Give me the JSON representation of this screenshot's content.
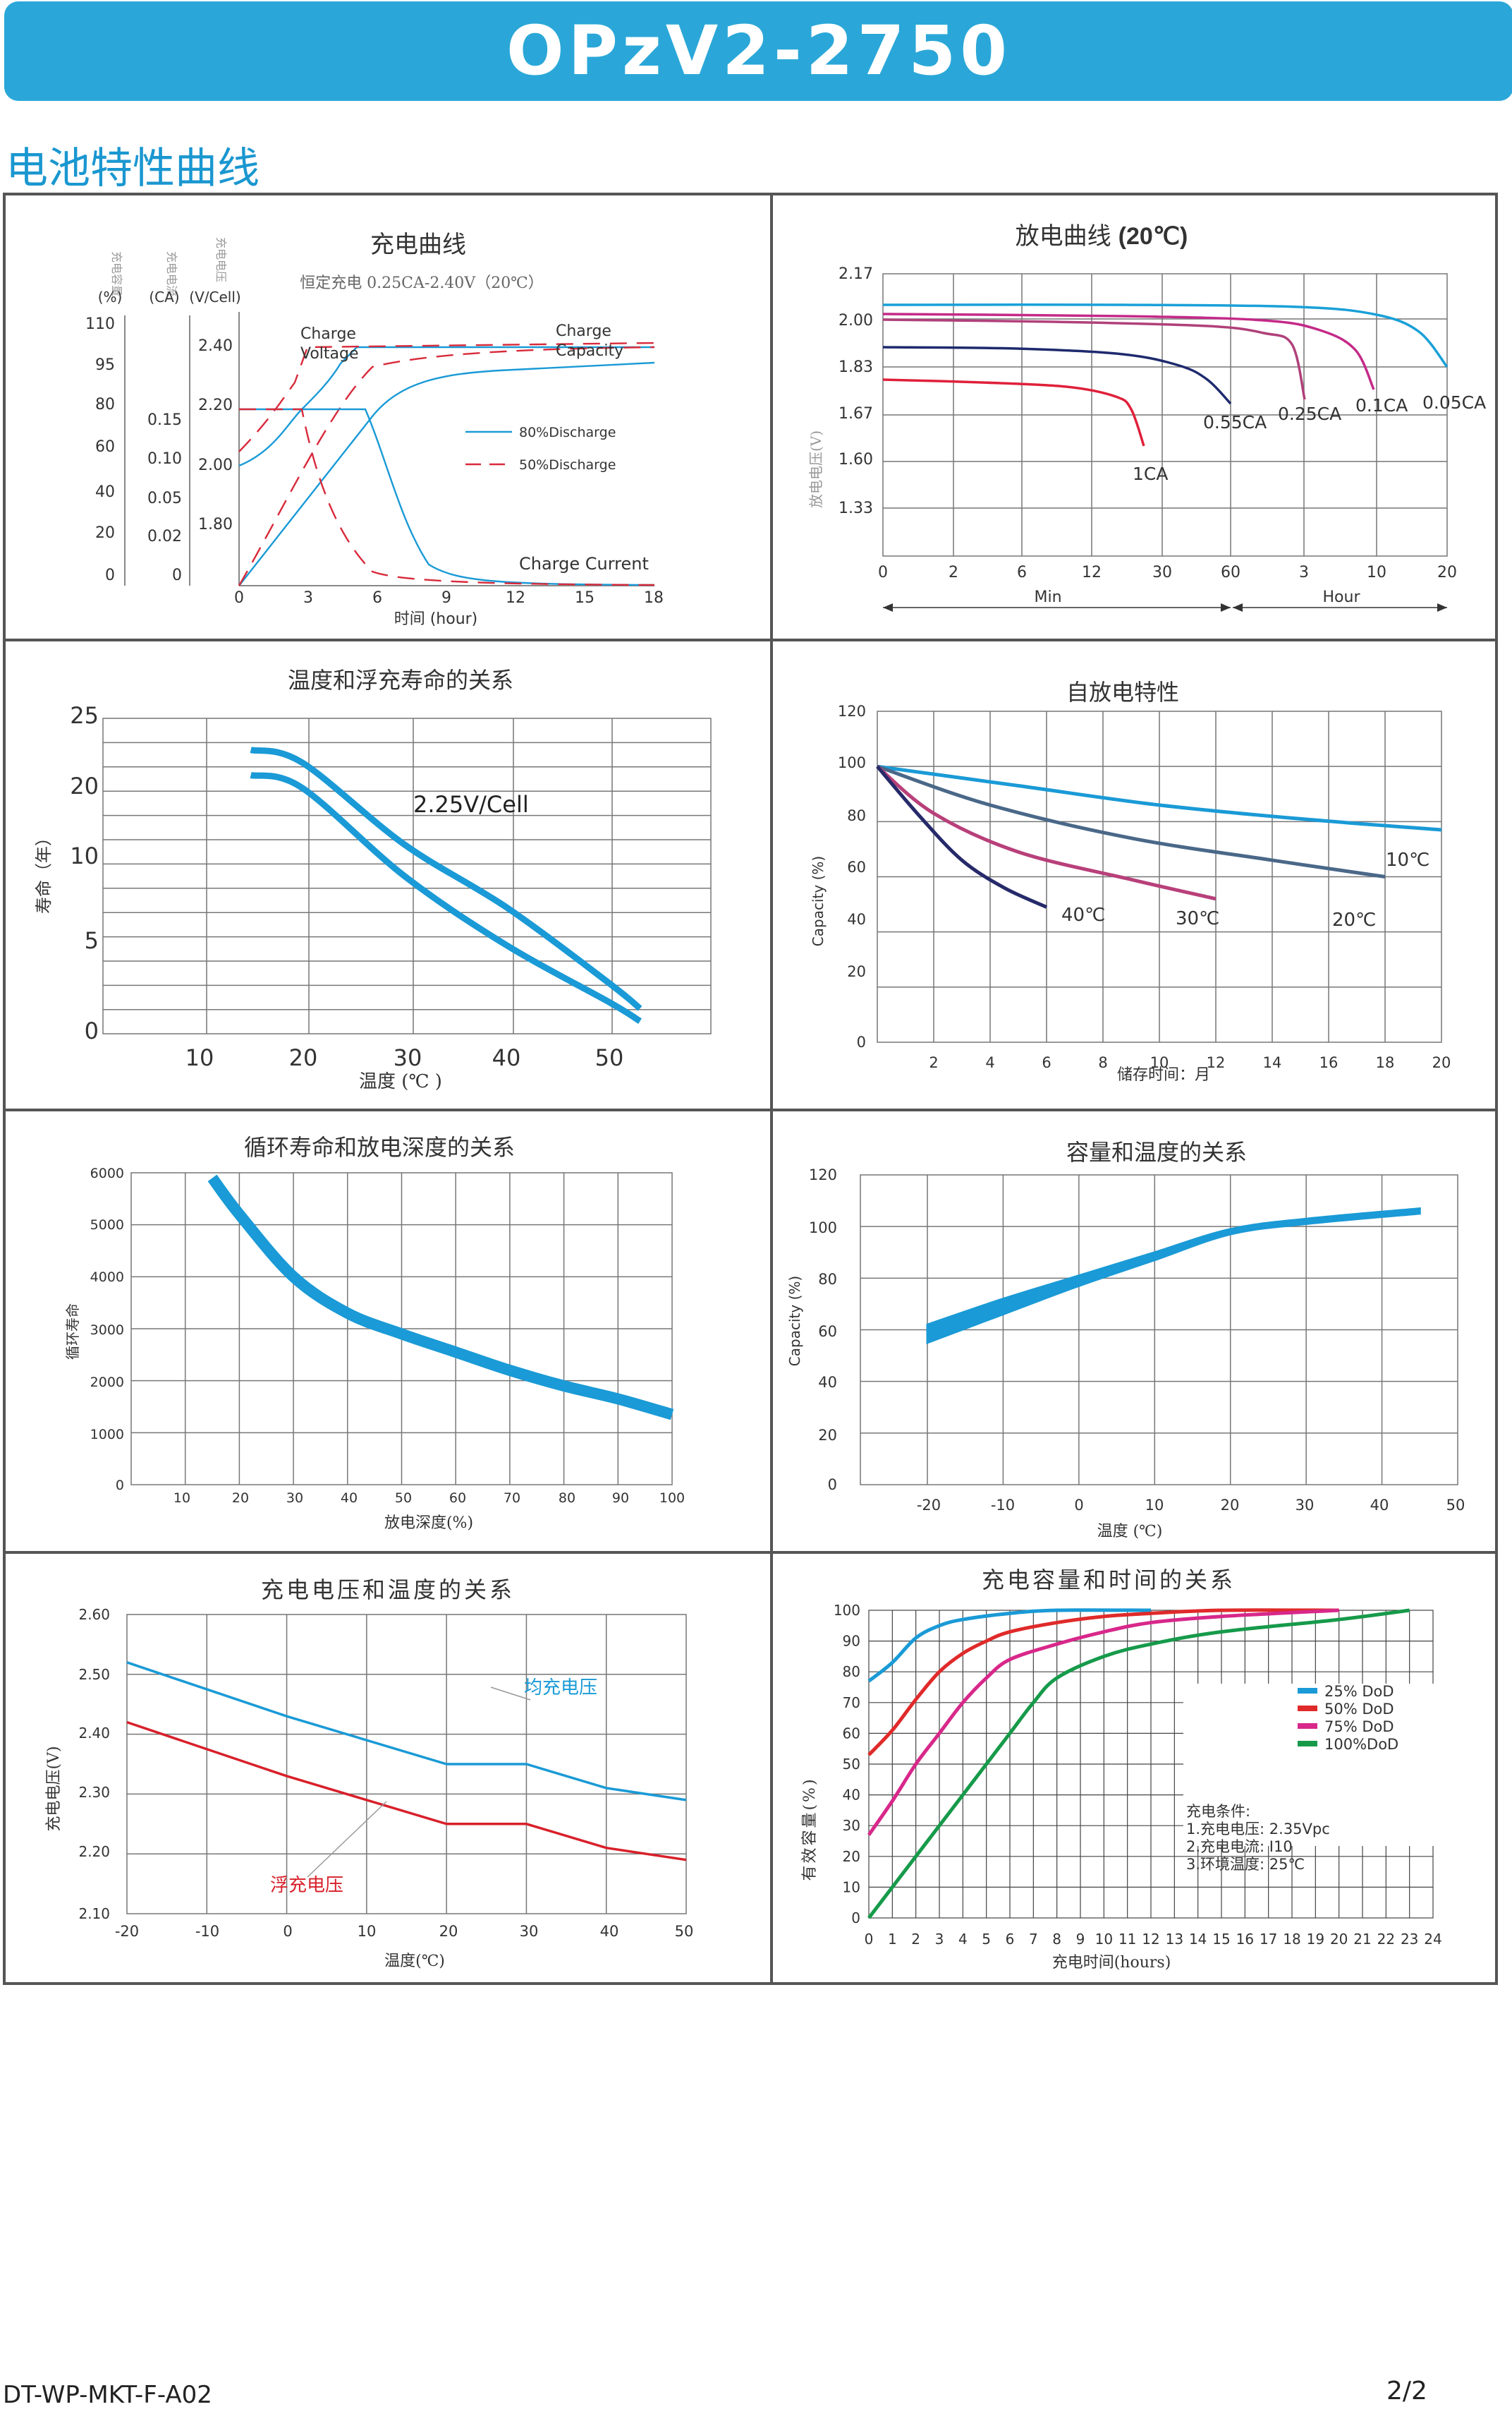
{
  "header": {
    "title": "OPzV2-2750",
    "color": "#2aa7d8"
  },
  "section_title": "电池特性曲线",
  "footer": {
    "code": "DT-WP-MKT-F-A02",
    "page": "2/2"
  },
  "charts": {
    "charge": {
      "title": "充电曲线",
      "subtitle": "恒定充电 0.25CA-2.40V（20℃）",
      "axis_names": {
        "capacity": "充电容量",
        "current": "充电电流",
        "voltage": "充电电压"
      },
      "units": {
        "capacity": "(%)",
        "current": "(CA)",
        "voltage": "(V/Cell)"
      },
      "capacity_ticks": [
        "110",
        "95",
        "80",
        "60",
        "40",
        "20",
        "0"
      ],
      "current_ticks": [
        "0.15",
        "0.10",
        "0.05",
        "0.02",
        "0"
      ],
      "voltage_ticks": [
        "2.40",
        "2.20",
        "2.00",
        "1.80"
      ],
      "x_ticks": [
        "0",
        "3",
        "6",
        "9",
        "12",
        "15",
        "18"
      ],
      "xlabel": "时间 (hour)",
      "labels": {
        "charge_voltage": "Charge\nVoltage",
        "charge_capacity": "Charge\nCapacity",
        "charge_current": "Charge Current"
      },
      "legend": [
        "80%Discharge",
        "50%Discharge"
      ]
    },
    "discharge": {
      "title": "放电曲线",
      "title_bold": "(20℃)",
      "ylabel": "放电电压(V)",
      "y_ticks": [
        "2.17",
        "2.00",
        "1.83",
        "1.67",
        "1.60",
        "1.33"
      ],
      "x_ticks": [
        "0",
        "2",
        "6",
        "12",
        "30",
        "60",
        "3",
        "10",
        "20"
      ],
      "x_group_min": "Min",
      "x_group_hour": "Hour",
      "curve_labels": [
        "1CA",
        "0.55CA",
        "0.25CA",
        "0.1CA",
        "0.05CA"
      ],
      "colors": [
        "#e0203a",
        "#1e2a6e",
        "#b0407a",
        "#c42a88",
        "#1aa0d8"
      ]
    },
    "float_life": {
      "title": "温度和浮充寿命的关系",
      "ylabel": "寿命（年）",
      "y_ticks": [
        "25",
        "20",
        "10",
        "5",
        "0"
      ],
      "x_ticks": [
        "10",
        "20",
        "30",
        "40",
        "50"
      ],
      "xlabel": "温度 (℃ )",
      "band_label": "2.25V/Cell",
      "chart_data": {
        "type": "area",
        "x": [
          15,
          20,
          30,
          40,
          50,
          53
        ],
        "upper": [
          22.5,
          21.5,
          15.0,
          10.0,
          4.0,
          2.0
        ],
        "lower": [
          20.5,
          19.5,
          12.5,
          7.0,
          2.5,
          1.0
        ]
      }
    },
    "self_discharge": {
      "title": "自放电特性",
      "ylabel": "Capacity (%)",
      "xlabel": "储存时间：月",
      "y_ticks": [
        "120",
        "100",
        "80",
        "60",
        "40",
        "20",
        "0"
      ],
      "x_ticks": [
        "2",
        "4",
        "6",
        "8",
        "10",
        "12",
        "14",
        "16",
        "18",
        "20"
      ],
      "chart_data": {
        "type": "line",
        "series": [
          {
            "name": "10℃",
            "x": [
              0,
              20
            ],
            "y": [
              100,
              77
            ]
          },
          {
            "name": "20℃",
            "x": [
              0,
              18
            ],
            "y": [
              100,
              60
            ]
          },
          {
            "name": "30℃",
            "x": [
              0,
              12
            ],
            "y": [
              100,
              52
            ]
          },
          {
            "name": "40℃",
            "x": [
              0,
              6
            ],
            "y": [
              100,
              49
            ]
          }
        ]
      }
    },
    "cycle_life": {
      "title": "循环寿命和放电深度的关系",
      "ylabel": "循环寿命",
      "xlabel": "放电深度(%)",
      "y_ticks": [
        "6000",
        "5000",
        "4000",
        "3000",
        "2000",
        "1000",
        "0"
      ],
      "x_ticks": [
        "10",
        "20",
        "30",
        "40",
        "50",
        "60",
        "70",
        "80",
        "90",
        "100"
      ],
      "chart_data": {
        "type": "line",
        "x": [
          15,
          20,
          30,
          40,
          50,
          60,
          70,
          80,
          90,
          100
        ],
        "y": [
          5900,
          5200,
          4000,
          3300,
          2900,
          2550,
          2200,
          1900,
          1650,
          1350
        ]
      }
    },
    "capacity_temp": {
      "title": "容量和温度的关系",
      "ylabel": "Capacity (%)",
      "xlabel": "温度 (℃)",
      "y_ticks": [
        "120",
        "100",
        "80",
        "60",
        "40",
        "20",
        "0"
      ],
      "x_ticks": [
        "-20",
        "-10",
        "0",
        "10",
        "20",
        "30",
        "40",
        "50"
      ],
      "chart_data": {
        "type": "area",
        "x": [
          -20,
          -10,
          0,
          10,
          20,
          30,
          45
        ],
        "upper": [
          62,
          72,
          81,
          90,
          99,
          103,
          107
        ],
        "lower": [
          55,
          66,
          77,
          87,
          97,
          101,
          105
        ]
      }
    },
    "charge_voltage_temp": {
      "title": "充电电压和温度的关系",
      "ylabel": "充电电压(V)",
      "xlabel": "温度(℃)",
      "y_ticks": [
        "2.60",
        "2.50",
        "2.40",
        "2.30",
        "2.20",
        "2.10"
      ],
      "x_ticks": [
        "-20",
        "-10",
        "0",
        "10",
        "20",
        "30",
        "40",
        "50"
      ],
      "chart_data": {
        "type": "line",
        "series": [
          {
            "name": "均充电压",
            "x": [
              -20,
              0,
              20,
              30,
              40,
              50
            ],
            "y": [
              2.52,
              2.43,
              2.35,
              2.35,
              2.31,
              2.29
            ]
          },
          {
            "name": "浮充电压",
            "x": [
              -20,
              0,
              20,
              30,
              40,
              50
            ],
            "y": [
              2.42,
              2.33,
              2.25,
              2.25,
              2.21,
              2.19
            ]
          }
        ]
      }
    },
    "charge_capacity_time": {
      "title": "充电容量和时间的关系",
      "ylabel": "有效容量(%)",
      "xlabel": "充电时间(hours)",
      "y_ticks": [
        "100",
        "90",
        "80",
        "70",
        "60",
        "50",
        "40",
        "30",
        "20",
        "10",
        "0"
      ],
      "x_ticks": [
        "0",
        "1",
        "2",
        "3",
        "4",
        "5",
        "6",
        "7",
        "8",
        "9",
        "10",
        "11",
        "12",
        "13",
        "14",
        "15",
        "16",
        "17",
        "18",
        "19",
        "20",
        "21",
        "22",
        "23",
        "24"
      ],
      "legend": [
        "25%  DoD",
        "50%  DoD",
        "75%  DoD",
        "100%DoD"
      ],
      "colors": [
        "#1a9ad6",
        "#e02a2a",
        "#d8288a",
        "#169a4a"
      ],
      "conditions": [
        "充电条件:",
        "1.充电电压: 2.35Vpc",
        "2.充电电流: I10",
        "3.环境温度: 25℃"
      ],
      "chart_data": {
        "type": "line",
        "series": [
          {
            "name": "25%  DoD",
            "x": [
              0,
              1,
              2,
              3,
              4,
              6,
              8,
              12
            ],
            "y": [
              77,
              83,
              91,
              95,
              97,
              99,
              100,
              100
            ]
          },
          {
            "name": "50%  DoD",
            "x": [
              0,
              1,
              2,
              3,
              4,
              5,
              6,
              8,
              10,
              12,
              15,
              20
            ],
            "y": [
              53,
              61,
              71,
              80,
              86,
              90,
              93,
              96,
              98,
              99,
              100,
              100
            ]
          },
          {
            "name": "75%  DoD",
            "x": [
              0,
              1,
              2,
              3,
              4,
              5,
              6,
              8,
              10,
              12,
              15,
              20
            ],
            "y": [
              27,
              38,
              50,
              60,
              70,
              78,
              84,
              89,
              93,
              96,
              98,
              100
            ]
          },
          {
            "name": "100%DoD",
            "x": [
              0,
              1,
              2,
              3,
              4,
              5,
              6,
              7,
              8,
              10,
              12,
              15,
              20,
              23
            ],
            "y": [
              0,
              10,
              20,
              30,
              40,
              50,
              60,
              70,
              78,
              85,
              89,
              93,
              97,
              100
            ]
          }
        ]
      }
    }
  }
}
